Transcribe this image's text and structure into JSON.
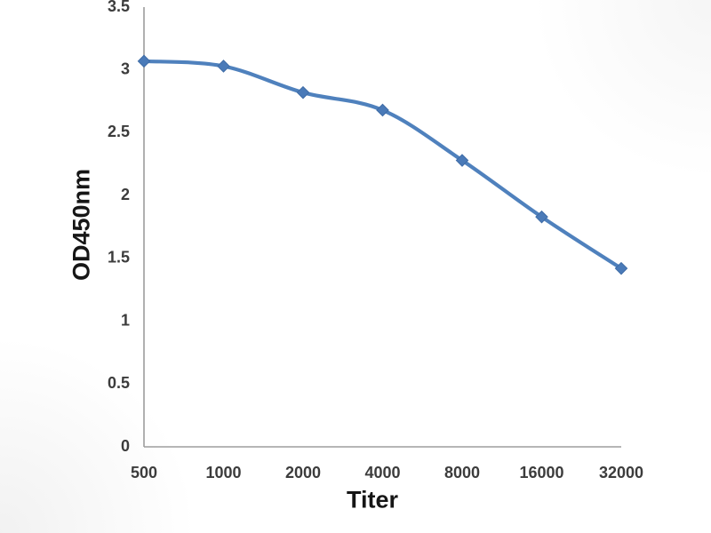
{
  "chart_data": {
    "type": "line",
    "title": "",
    "xlabel": "Titer",
    "ylabel": "OD450nm",
    "categories": [
      "500",
      "1000",
      "2000",
      "4000",
      "8000",
      "16000",
      "32000"
    ],
    "series": [
      {
        "name": "OD450nm",
        "values": [
          3.07,
          3.03,
          2.82,
          2.68,
          2.28,
          1.83,
          1.42
        ]
      }
    ],
    "ylim": [
      0,
      3.5
    ],
    "y_ticks": [
      0,
      0.5,
      1,
      1.5,
      2,
      2.5,
      3,
      3.5
    ],
    "y_tick_labels": [
      "0",
      "0.5",
      "1",
      "1.5",
      "2",
      "2.5",
      "3",
      "3.5"
    ],
    "grid": false,
    "legend_position": "none",
    "marker_shape": "diamond",
    "colors": {
      "line": "#4f81bd",
      "marker_fill": "#4a7ab8",
      "marker_stroke": "#3f6ca6",
      "axis_line": "#9d9d9d",
      "tick_label": "#3c3c3c",
      "axis_title": "#161616",
      "background": "#ffffff"
    }
  }
}
